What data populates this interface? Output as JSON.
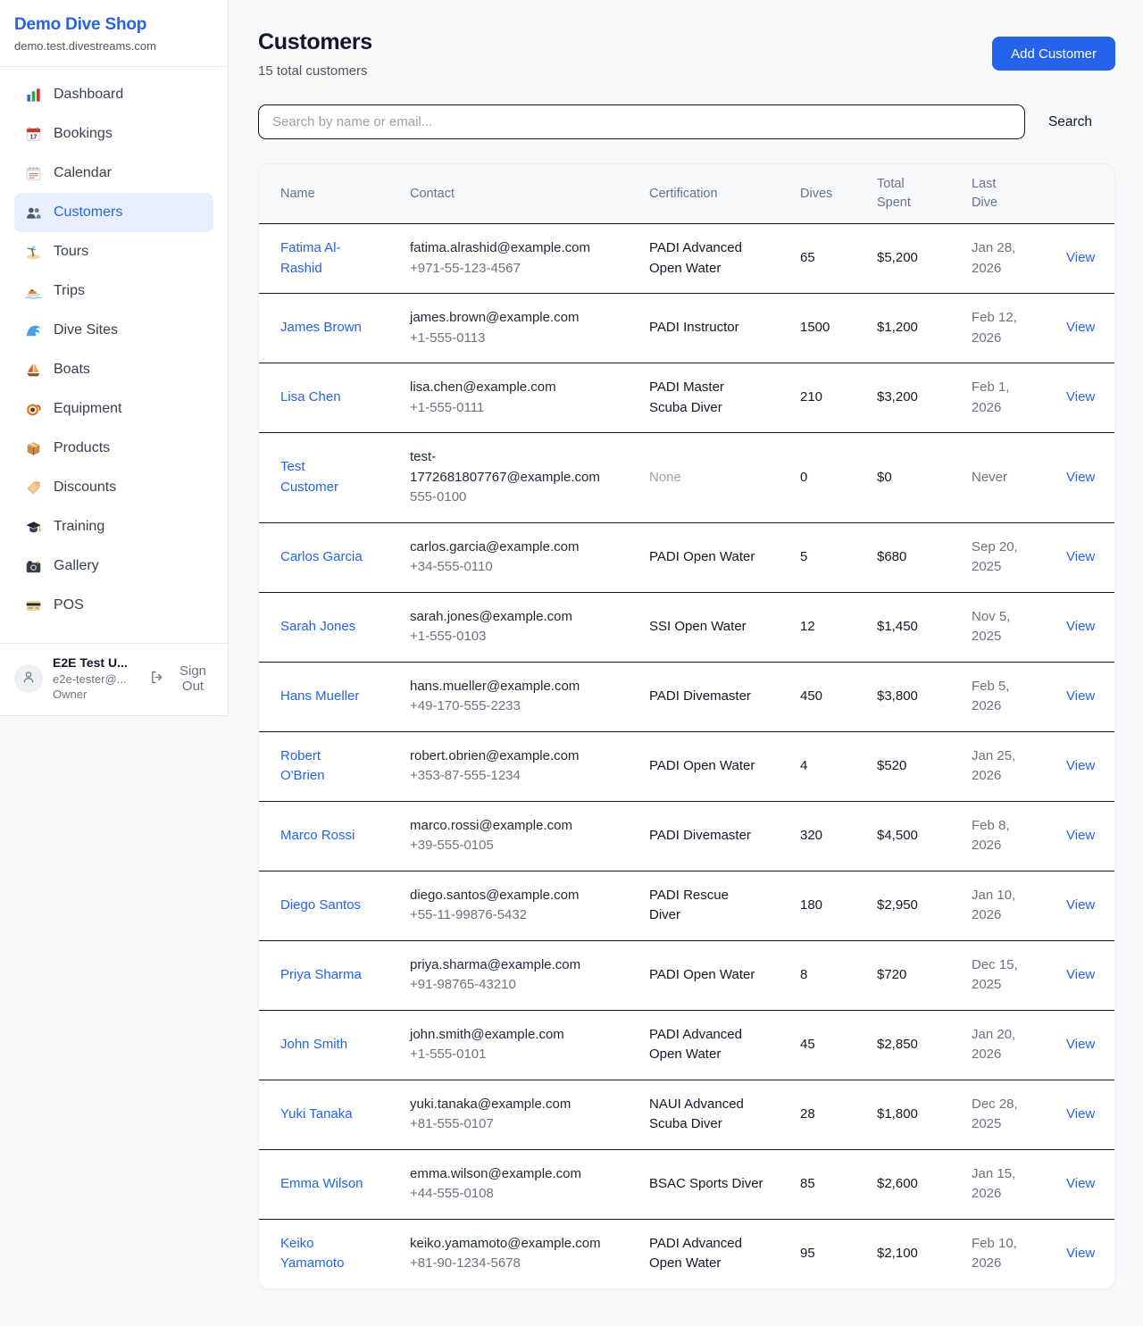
{
  "sidebar": {
    "title": "Demo Dive Shop",
    "subtitle": "demo.test.divestreams.com",
    "items": [
      {
        "label": "Dashboard",
        "icon": "dashboard-icon",
        "active": false
      },
      {
        "label": "Bookings",
        "icon": "bookings-icon",
        "active": false
      },
      {
        "label": "Calendar",
        "icon": "calendar-icon",
        "active": false
      },
      {
        "label": "Customers",
        "icon": "customers-icon",
        "active": true
      },
      {
        "label": "Tours",
        "icon": "tours-icon",
        "active": false
      },
      {
        "label": "Trips",
        "icon": "trips-icon",
        "active": false
      },
      {
        "label": "Dive Sites",
        "icon": "dive-sites-icon",
        "active": false
      },
      {
        "label": "Boats",
        "icon": "boats-icon",
        "active": false
      },
      {
        "label": "Equipment",
        "icon": "equipment-icon",
        "active": false
      },
      {
        "label": "Products",
        "icon": "products-icon",
        "active": false
      },
      {
        "label": "Discounts",
        "icon": "discounts-icon",
        "active": false
      },
      {
        "label": "Training",
        "icon": "training-icon",
        "active": false
      },
      {
        "label": "Gallery",
        "icon": "gallery-icon",
        "active": false
      },
      {
        "label": "POS",
        "icon": "pos-icon",
        "active": false
      }
    ],
    "user": {
      "name": "E2E Test U...",
      "email": "e2e-tester@...",
      "role": "Owner",
      "signout_label": "Sign Out"
    }
  },
  "header": {
    "title": "Customers",
    "subtitle": "15 total customers",
    "add_button_label": "Add Customer"
  },
  "search": {
    "placeholder": "Search by name or email...",
    "button_label": "Search"
  },
  "table": {
    "columns": [
      "Name",
      "Contact",
      "Certification",
      "Dives",
      "Total Spent",
      "Last Dive",
      ""
    ],
    "view_label": "View",
    "rows": [
      {
        "name": "Fatima Al-Rashid",
        "email": "fatima.alrashid@example.com",
        "phone": "+971-55-123-4567",
        "certification": "PADI Advanced Open Water",
        "dives": "65",
        "total_spent": "$5,200",
        "last_dive": "Jan 28, 2026"
      },
      {
        "name": "James Brown",
        "email": "james.brown@example.com",
        "phone": "+1-555-0113",
        "certification": "PADI Instructor",
        "dives": "1500",
        "total_spent": "$1,200",
        "last_dive": "Feb 12, 2026"
      },
      {
        "name": "Lisa Chen",
        "email": "lisa.chen@example.com",
        "phone": "+1-555-0111",
        "certification": "PADI Master Scuba Diver",
        "dives": "210",
        "total_spent": "$3,200",
        "last_dive": "Feb 1, 2026"
      },
      {
        "name": "Test Customer",
        "email": "test-1772681807767@example.com",
        "phone": "555-0100",
        "certification": "None",
        "dives": "0",
        "total_spent": "$0",
        "last_dive": "Never"
      },
      {
        "name": "Carlos Garcia",
        "email": "carlos.garcia@example.com",
        "phone": "+34-555-0110",
        "certification": "PADI Open Water",
        "dives": "5",
        "total_spent": "$680",
        "last_dive": "Sep 20, 2025"
      },
      {
        "name": "Sarah Jones",
        "email": "sarah.jones@example.com",
        "phone": "+1-555-0103",
        "certification": "SSI Open Water",
        "dives": "12",
        "total_spent": "$1,450",
        "last_dive": "Nov 5, 2025"
      },
      {
        "name": "Hans Mueller",
        "email": "hans.mueller@example.com",
        "phone": "+49-170-555-2233",
        "certification": "PADI Divemaster",
        "dives": "450",
        "total_spent": "$3,800",
        "last_dive": "Feb 5, 2026"
      },
      {
        "name": "Robert O'Brien",
        "email": "robert.obrien@example.com",
        "phone": "+353-87-555-1234",
        "certification": "PADI Open Water",
        "dives": "4",
        "total_spent": "$520",
        "last_dive": "Jan 25, 2026"
      },
      {
        "name": "Marco Rossi",
        "email": "marco.rossi@example.com",
        "phone": "+39-555-0105",
        "certification": "PADI Divemaster",
        "dives": "320",
        "total_spent": "$4,500",
        "last_dive": "Feb 8, 2026"
      },
      {
        "name": "Diego Santos",
        "email": "diego.santos@example.com",
        "phone": "+55-11-99876-5432",
        "certification": "PADI Rescue Diver",
        "dives": "180",
        "total_spent": "$2,950",
        "last_dive": "Jan 10, 2026"
      },
      {
        "name": "Priya Sharma",
        "email": "priya.sharma@example.com",
        "phone": "+91-98765-43210",
        "certification": "PADI Open Water",
        "dives": "8",
        "total_spent": "$720",
        "last_dive": "Dec 15, 2025"
      },
      {
        "name": "John Smith",
        "email": "john.smith@example.com",
        "phone": "+1-555-0101",
        "certification": "PADI Advanced Open Water",
        "dives": "45",
        "total_spent": "$2,850",
        "last_dive": "Jan 20, 2026"
      },
      {
        "name": "Yuki Tanaka",
        "email": "yuki.tanaka@example.com",
        "phone": "+81-555-0107",
        "certification": "NAUI Advanced Scuba Diver",
        "dives": "28",
        "total_spent": "$1,800",
        "last_dive": "Dec 28, 2025"
      },
      {
        "name": "Emma Wilson",
        "email": "emma.wilson@example.com",
        "phone": "+44-555-0108",
        "certification": "BSAC Sports Diver",
        "dives": "85",
        "total_spent": "$2,600",
        "last_dive": "Jan 15, 2026"
      },
      {
        "name": "Keiko Yamamoto",
        "email": "keiko.yamamoto@example.com",
        "phone": "+81-90-1234-5678",
        "certification": "PADI Advanced Open Water",
        "dives": "95",
        "total_spent": "$2,100",
        "last_dive": "Feb 10, 2026"
      }
    ]
  },
  "colors": {
    "accent_blue": "#2563eb",
    "active_item_bg": "#e8f0fd",
    "page_bg": "#f8f9fa",
    "row_divider": "#0f172a",
    "muted_text": "#6b7280"
  }
}
